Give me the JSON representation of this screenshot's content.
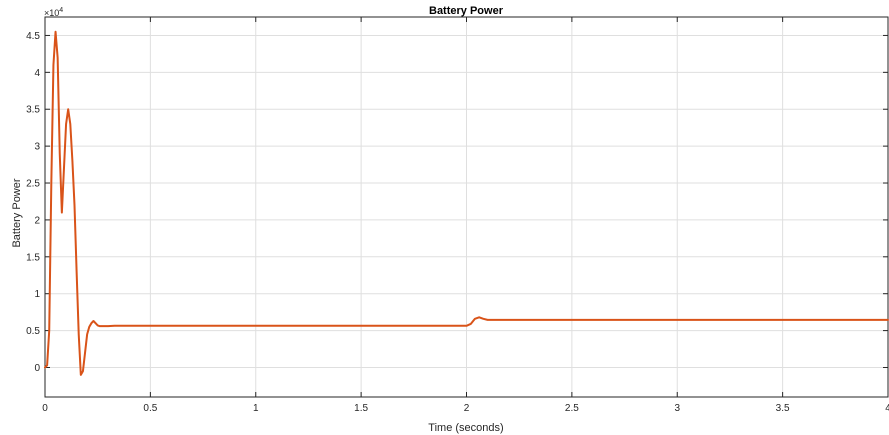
{
  "chart_data": {
    "type": "line",
    "title": "Battery Power",
    "xlabel": "Time (seconds)",
    "ylabel": "Battery Power",
    "y_multiplier_label": "×10",
    "y_multiplier_exponent": "4",
    "xlim": [
      0,
      4
    ],
    "ylim": [
      -0.4,
      4.75
    ],
    "xticks": [
      0,
      0.5,
      1,
      1.5,
      2,
      2.5,
      3,
      3.5,
      4
    ],
    "xtick_labels": [
      "0",
      "0.5",
      "1",
      "1.5",
      "2",
      "2.5",
      "3",
      "3.5",
      "4"
    ],
    "yticks": [
      0,
      0.5,
      1,
      1.5,
      2,
      2.5,
      3,
      3.5,
      4,
      4.5
    ],
    "ytick_labels": [
      "0",
      "0.5",
      "1",
      "1.5",
      "2",
      "2.5",
      "3",
      "3.5",
      "4",
      "4.5"
    ],
    "grid": true,
    "series": [
      {
        "color": "#d95319",
        "x": [
          0,
          0.01,
          0.02,
          0.03,
          0.04,
          0.05,
          0.06,
          0.07,
          0.08,
          0.1,
          0.11,
          0.12,
          0.13,
          0.14,
          0.15,
          0.16,
          0.17,
          0.18,
          0.19,
          0.2,
          0.21,
          0.22,
          0.23,
          0.24,
          0.25,
          0.26,
          0.27,
          0.28,
          0.3,
          0.33,
          0.36,
          0.4,
          0.5,
          0.8,
          1.2,
          1.6,
          2.0,
          2.02,
          2.04,
          2.06,
          2.08,
          2.1,
          2.15,
          2.3,
          2.6,
          3.0,
          3.5,
          4.0
        ],
        "y": [
          0,
          0.03,
          0.5,
          2.5,
          4.1,
          4.55,
          4.2,
          2.9,
          2.1,
          3.3,
          3.5,
          3.3,
          2.8,
          2.2,
          1.3,
          0.45,
          -0.1,
          -0.05,
          0.2,
          0.45,
          0.55,
          0.6,
          0.63,
          0.6,
          0.57,
          0.56,
          0.56,
          0.56,
          0.56,
          0.565,
          0.565,
          0.565,
          0.565,
          0.565,
          0.565,
          0.565,
          0.565,
          0.59,
          0.66,
          0.68,
          0.66,
          0.645,
          0.645,
          0.645,
          0.645,
          0.645,
          0.645,
          0.645
        ]
      }
    ]
  }
}
